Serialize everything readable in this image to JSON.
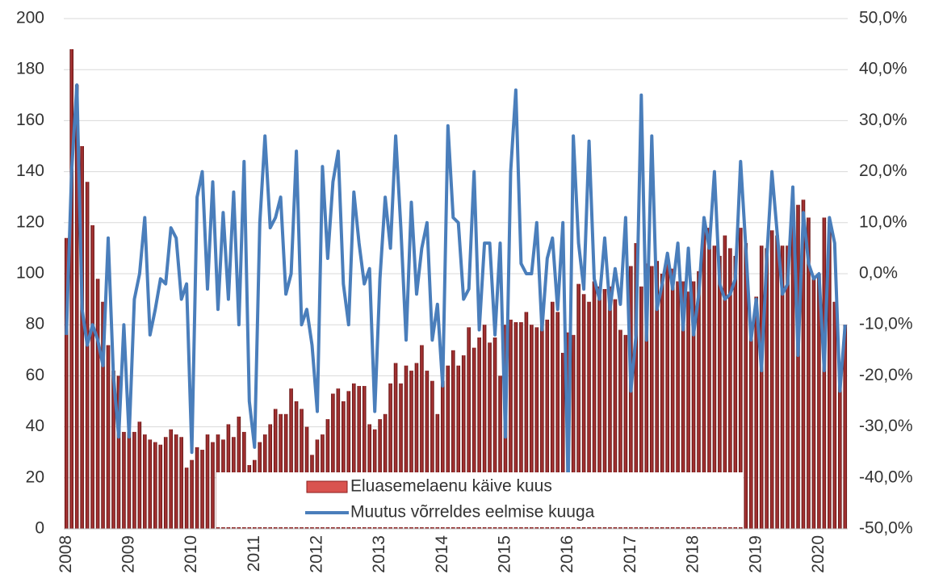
{
  "chart_data": {
    "type": "bar_line",
    "categories": [
      "2008",
      null,
      null,
      null,
      null,
      null,
      null,
      null,
      null,
      null,
      null,
      null,
      "2009",
      null,
      null,
      null,
      null,
      null,
      null,
      null,
      null,
      null,
      null,
      null,
      "2010",
      null,
      null,
      null,
      null,
      null,
      null,
      null,
      null,
      null,
      null,
      null,
      "2011",
      null,
      null,
      null,
      null,
      null,
      null,
      null,
      null,
      null,
      null,
      null,
      "2012",
      null,
      null,
      null,
      null,
      null,
      null,
      null,
      null,
      null,
      null,
      null,
      "2013",
      null,
      null,
      null,
      null,
      null,
      null,
      null,
      null,
      null,
      null,
      null,
      "2014",
      null,
      null,
      null,
      null,
      null,
      null,
      null,
      null,
      null,
      null,
      null,
      "2015",
      null,
      null,
      null,
      null,
      null,
      null,
      null,
      null,
      null,
      null,
      null,
      "2016",
      null,
      null,
      null,
      null,
      null,
      null,
      null,
      null,
      null,
      null,
      null,
      "2017",
      null,
      null,
      null,
      null,
      null,
      null,
      null,
      null,
      null,
      null,
      null,
      "2018",
      null,
      null,
      null,
      null,
      null,
      null,
      null,
      null,
      null,
      null,
      null,
      "2019",
      null,
      null,
      null,
      null,
      null,
      null,
      null,
      null,
      null,
      null,
      null,
      "2020",
      null,
      null,
      null,
      null,
      null
    ],
    "series": [
      {
        "name": "Eluasemelaenu käive kuus",
        "color": "#8b1c1c",
        "values": [
          114,
          188,
          174,
          150,
          136,
          119,
          98,
          89,
          72,
          62,
          60,
          38,
          38,
          38,
          42,
          37,
          35,
          34,
          33,
          36,
          39,
          37,
          36,
          24,
          27,
          32,
          31,
          37,
          34,
          37,
          35,
          41,
          36,
          44,
          38,
          25,
          27,
          34,
          37,
          41,
          47,
          45,
          45,
          55,
          50,
          47,
          40,
          29,
          35,
          37,
          43,
          53,
          55,
          50,
          54,
          57,
          56,
          56,
          41,
          39,
          43,
          45,
          57,
          65,
          57,
          64,
          62,
          65,
          72,
          62,
          58,
          45,
          58,
          64,
          70,
          64,
          68,
          79,
          71,
          75,
          80,
          73,
          75,
          60,
          80,
          82,
          81,
          81,
          85,
          80,
          79,
          87,
          82,
          89,
          85,
          69,
          77,
          76,
          96,
          92,
          89,
          97,
          95,
          94,
          95,
          90,
          78,
          76,
          103,
          112,
          95,
          104,
          103,
          105,
          100,
          104,
          102,
          97,
          97,
          93,
          97,
          101,
          120,
          118,
          111,
          107,
          115,
          110,
          107,
          118,
          112,
          80,
          91,
          111,
          110,
          117,
          115,
          111,
          111,
          127,
          127,
          129,
          122,
          99,
          100,
          122,
          117,
          89,
          60,
          80
        ]
      },
      {
        "name": "Muutus võrreldes eelmise kuuga",
        "color": "#4a7ebb",
        "axis": "y2",
        "values": [
          -12,
          20,
          37,
          -7,
          -14,
          -10,
          -13,
          -18,
          7,
          -20,
          -32,
          -10,
          -32,
          -5,
          0,
          11,
          -12,
          -7,
          -1,
          -2,
          9,
          7,
          -5,
          -2,
          -35,
          15,
          20,
          -3,
          18,
          -7,
          12,
          -5,
          16,
          -10,
          22,
          -25,
          -34,
          10,
          27,
          9,
          11,
          15,
          -4,
          0,
          24,
          -10,
          -7,
          -14,
          -27,
          21,
          3,
          18,
          24,
          -2,
          -10,
          16,
          6,
          -2,
          1,
          -27,
          -1,
          15,
          5,
          27,
          9,
          -13,
          14,
          -4,
          5,
          10,
          -13,
          -6,
          -22,
          29,
          11,
          10,
          -5,
          -3,
          20,
          -11,
          6,
          6,
          -12,
          6,
          -32,
          20,
          36,
          2,
          0,
          0,
          10,
          -11,
          3,
          7,
          -7,
          10,
          -42,
          27,
          6,
          -3,
          26,
          -1,
          -5,
          7,
          -7,
          1,
          -6,
          11,
          -23,
          -12,
          35,
          -13,
          27,
          -7,
          -2,
          4,
          -3,
          6,
          -11,
          5,
          -12,
          -4,
          11,
          5,
          20,
          -2,
          -5,
          -4,
          -1,
          22,
          5,
          -13,
          -5,
          -19,
          3,
          20,
          8,
          -4,
          -2,
          17,
          -16,
          12,
          2,
          -1,
          0,
          -19,
          11,
          6,
          -23,
          -10
        ]
      }
    ],
    "ylim": [
      0,
      200
    ],
    "yticks": [
      0,
      20,
      40,
      60,
      80,
      100,
      120,
      140,
      160,
      180,
      200
    ],
    "y2lim": [
      -50,
      50
    ],
    "y2ticks": [
      {
        "value": -50,
        "label": "-50,0%"
      },
      {
        "value": -40,
        "label": "-40,0%"
      },
      {
        "value": -30,
        "label": "-30,0%"
      },
      {
        "value": -20,
        "label": "-20,0%"
      },
      {
        "value": -10,
        "label": "-10,0%"
      },
      {
        "value": 0,
        "label": "0,0%"
      },
      {
        "value": 10,
        "label": "10,0%"
      },
      {
        "value": 20,
        "label": "20,0%"
      },
      {
        "value": 30,
        "label": "30,0%"
      },
      {
        "value": 40,
        "label": "40,0%"
      },
      {
        "value": 50,
        "label": "50,0%"
      }
    ],
    "grid": true,
    "legend": "bottom"
  }
}
